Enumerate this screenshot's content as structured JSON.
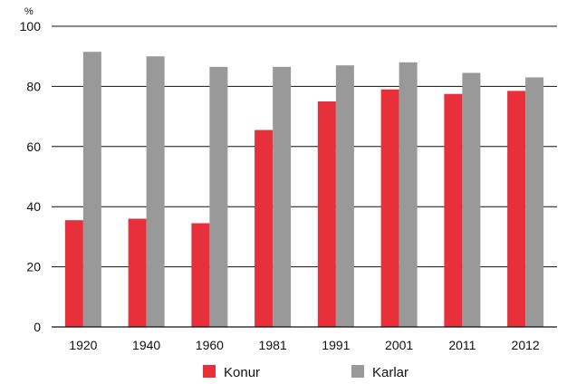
{
  "chart_data": {
    "type": "bar",
    "unit_label": "%",
    "categories": [
      "1920",
      "1940",
      "1960",
      "1981",
      "1991",
      "2001",
      "2011",
      "2012"
    ],
    "series": [
      {
        "name": "Konur",
        "color": "#e8303a",
        "values": [
          35.5,
          36,
          34.5,
          65.5,
          75,
          79,
          77.5,
          78.5
        ]
      },
      {
        "name": "Karlar",
        "color": "#999999",
        "values": [
          91.5,
          90,
          86.5,
          86.5,
          87,
          88,
          84.5,
          83
        ]
      }
    ],
    "ylim": [
      0,
      100
    ],
    "yticks": [
      0,
      20,
      40,
      60,
      80,
      100
    ],
    "grid": true,
    "legend_position": "bottom-center"
  }
}
